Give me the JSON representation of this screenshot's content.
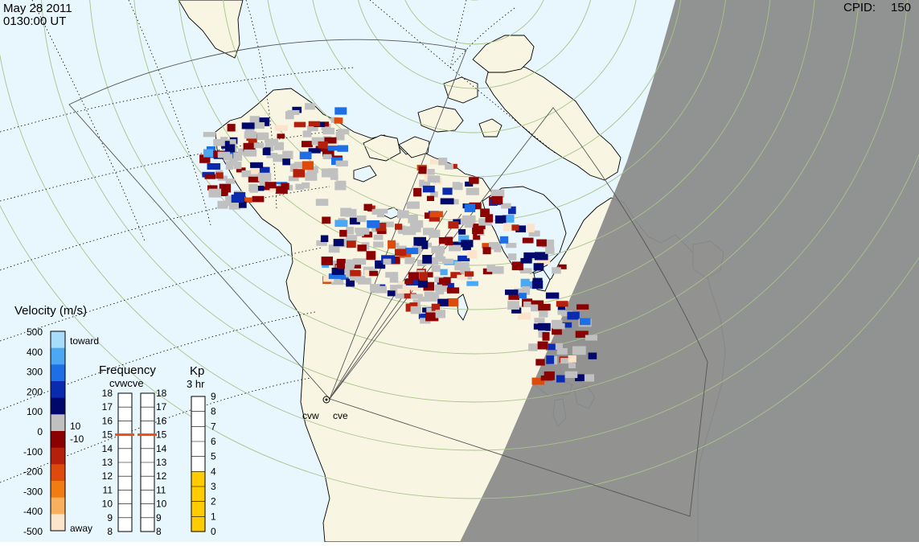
{
  "header": {
    "date": "May 28 2011",
    "time": "0130:00 UT",
    "cpid_label": "CPID:",
    "cpid_value": "150"
  },
  "radars": [
    {
      "code": "cvw"
    },
    {
      "code": "cve"
    }
  ],
  "velocity_scale": {
    "title": "Velocity (m/s)",
    "ticks": [
      "500",
      "400",
      "300",
      "200",
      "100",
      "0",
      "-100",
      "-200",
      "-300",
      "-400",
      "-500"
    ],
    "toward_label": "toward",
    "away_label": "away",
    "threshold_pos": "10",
    "threshold_neg": "-10",
    "colors": [
      "#fbe3cc",
      "#f8b05f",
      "#f07c12",
      "#de4a0c",
      "#b5200d",
      "#8b0000",
      "#c0c0c0",
      "#00086b",
      "#0a2bb0",
      "#1e6ee6",
      "#4aa8f5",
      "#a8dcfb"
    ]
  },
  "frequency_panel": {
    "title": "Frequency",
    "subtitle": "cvwcve",
    "ticks": [
      "18",
      "17",
      "16",
      "15",
      "14",
      "13",
      "12",
      "11",
      "10",
      "9",
      "8"
    ],
    "cvw_mhz": 15,
    "cve_mhz": 15,
    "marker_color": "#e8501a"
  },
  "kp_panel": {
    "title": "Kp",
    "subtitle": "3 hr",
    "ticks": [
      "9",
      "8",
      "7",
      "6",
      "5",
      "4",
      "3",
      "2",
      "1",
      "0"
    ],
    "value": 4,
    "fill_color": "#ffcc00"
  },
  "map_colors": {
    "ocean": "#e8f6fd",
    "land": "#f8f6e3",
    "night": "#8c8c8c",
    "coast": "#000000",
    "lat_circle": "#a9c48a",
    "grid": "#000000"
  }
}
